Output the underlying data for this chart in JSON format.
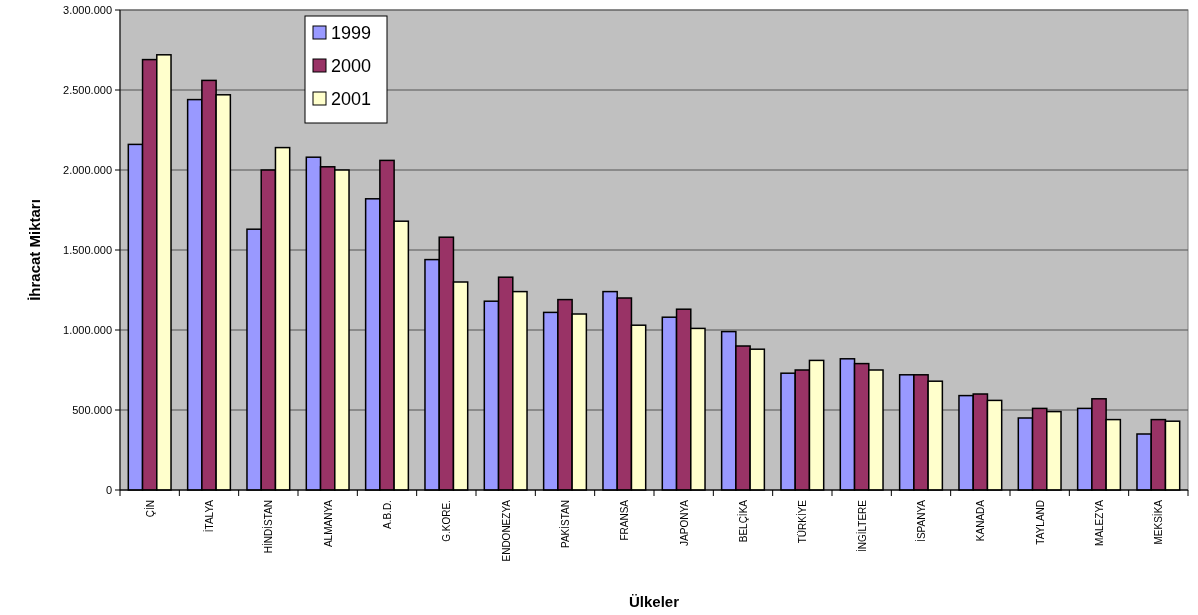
{
  "chart_data": {
    "type": "bar",
    "xlabel": "Ülkeler",
    "ylabel": "İhracat Miktarı",
    "categories": [
      "ÇİN",
      "İTALYA",
      "HİNDİSTAN",
      "ALMANYA",
      "A.B.D.",
      "G.KORE.",
      "ENDONEZYA",
      "PAKİSTAN",
      "FRANSA",
      "JAPONYA",
      "BELÇİKA",
      "TÜRKİYE",
      "İNGİLTERE",
      "İSPANYA",
      "KANADA",
      "TAYLAND",
      "MALEZYA",
      "MEKSİKA"
    ],
    "series": [
      {
        "name": "1999",
        "color": "#9999ff",
        "values": [
          2160000,
          2440000,
          1630000,
          2080000,
          1820000,
          1440000,
          1180000,
          1110000,
          1240000,
          1080000,
          990000,
          730000,
          820000,
          720000,
          590000,
          450000,
          510000,
          350000
        ]
      },
      {
        "name": "2000",
        "color": "#993366",
        "values": [
          2690000,
          2560000,
          2000000,
          2020000,
          2060000,
          1580000,
          1330000,
          1190000,
          1200000,
          1130000,
          900000,
          750000,
          790000,
          720000,
          600000,
          510000,
          570000,
          440000
        ]
      },
      {
        "name": "2001",
        "color": "#ffffcc",
        "values": [
          2720000,
          2470000,
          2140000,
          2000000,
          1680000,
          1300000,
          1240000,
          1100000,
          1030000,
          1010000,
          880000,
          810000,
          750000,
          680000,
          560000,
          490000,
          440000,
          430000
        ]
      }
    ],
    "ylim": [
      0,
      3000000
    ],
    "yticks": [
      {
        "value": 0,
        "label": "0"
      },
      {
        "value": 500000,
        "label": "500.000"
      },
      {
        "value": 1000000,
        "label": "1.000.000"
      },
      {
        "value": 1500000,
        "label": "1.500.000"
      },
      {
        "value": 2000000,
        "label": "2.000.000"
      },
      {
        "value": 2500000,
        "label": "2.500.000"
      },
      {
        "value": 3000000,
        "label": "3.000.000"
      }
    ],
    "grid": "y",
    "legend": "top"
  }
}
